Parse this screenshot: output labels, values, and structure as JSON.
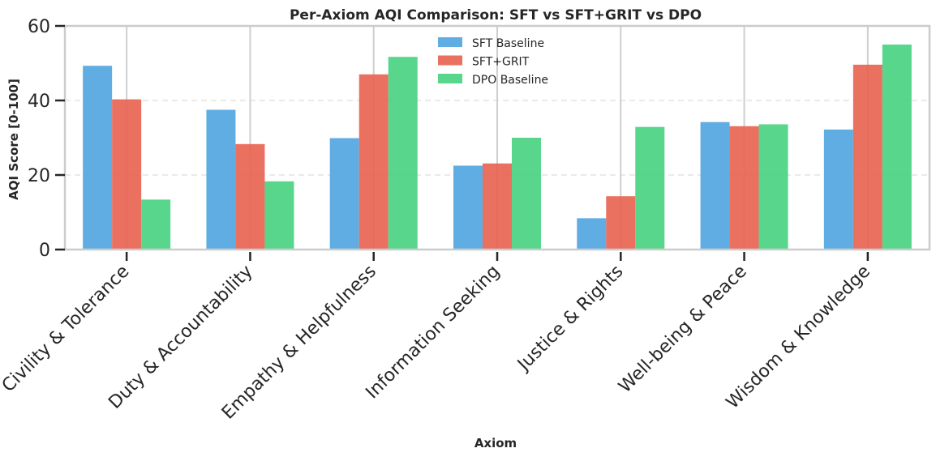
{
  "chart_data": {
    "type": "bar",
    "title": "Per-Axiom AQI Comparison: SFT vs SFT+GRIT vs DPO",
    "xlabel": "Axiom",
    "ylabel": "AQI Score [0-100]",
    "ylim": [
      0,
      60
    ],
    "yticks": [
      0,
      20,
      40,
      60
    ],
    "grid": true,
    "legend_position": "top-center",
    "categories": [
      "Civility & Tolerance",
      "Duty & Accountability",
      "Empathy & Helpfulness",
      "Information Seeking",
      "Justice & Rights",
      "Well-being & Peace",
      "Wisdom & Knowledge"
    ],
    "series": [
      {
        "name": "SFT Baseline",
        "color": "#4ea4e0",
        "values": [
          49.3,
          37.5,
          29.9,
          22.5,
          8.4,
          34.2,
          32.2
        ]
      },
      {
        "name": "SFT+GRIT",
        "color": "#e8604f",
        "values": [
          40.3,
          28.3,
          47.0,
          23.1,
          14.3,
          33.1,
          49.6
        ]
      },
      {
        "name": "DPO Baseline",
        "color": "#45d17f",
        "values": [
          13.4,
          18.3,
          51.7,
          30.0,
          32.9,
          33.6,
          55.0
        ]
      }
    ]
  }
}
